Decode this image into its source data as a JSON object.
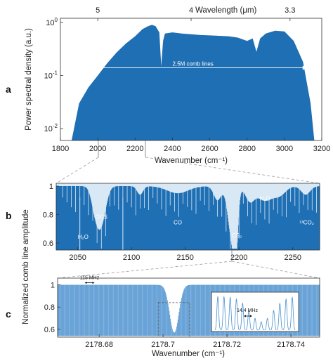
{
  "colors": {
    "spectrum": "#1f6fb4",
    "spectrum_light": "#d9e8f5",
    "comb_line": "#4a90cf",
    "axis": "#333333",
    "annotation": "#ffffff",
    "dashed": "#999999"
  },
  "panel_labels": [
    "a",
    "b",
    "c"
  ],
  "chart_data": [
    {
      "type": "area",
      "panel": "a",
      "xlabel": "Wavenumber (cm⁻¹)",
      "ylabel": "Power spectral density (a.u.)",
      "top_axis_label": "Wavelength (μm)",
      "top_ticks": [
        {
          "label": "5",
          "wavenumber": 2000
        },
        {
          "label": "4",
          "wavenumber": 2500
        },
        {
          "label": "3.3",
          "wavenumber": 3030
        }
      ],
      "xlim": [
        1800,
        3200
      ],
      "xticks": [
        1800,
        2000,
        2200,
        2400,
        2600,
        2800,
        3000,
        3200
      ],
      "ylim": [
        0.006,
        1.2
      ],
      "yscale": "log",
      "yticks": [
        {
          "value": 0.01,
          "base": "10",
          "exp": "-2"
        },
        {
          "value": 0.1,
          "base": "10",
          "exp": "-1"
        },
        {
          "value": 1,
          "base": "10",
          "exp": "0"
        }
      ],
      "x": [
        1800,
        1860,
        1900,
        1950,
        2000,
        2050,
        2100,
        2150,
        2200,
        2240,
        2270,
        2290,
        2310,
        2330,
        2340,
        2350,
        2360,
        2400,
        2450,
        2500,
        2550,
        2600,
        2650,
        2700,
        2750,
        2800,
        2830,
        2850,
        2870,
        2900,
        2950,
        3000,
        3050,
        3100,
        3140,
        3160,
        3200
      ],
      "y": [
        0.006,
        0.006,
        0.03,
        0.06,
        0.1,
        0.17,
        0.27,
        0.4,
        0.55,
        0.75,
        0.85,
        0.9,
        0.85,
        0.65,
        0.15,
        0.45,
        0.62,
        0.65,
        0.62,
        0.6,
        0.58,
        0.57,
        0.56,
        0.55,
        0.52,
        0.45,
        0.5,
        0.28,
        0.5,
        0.62,
        0.7,
        0.68,
        0.45,
        0.18,
        0.03,
        0.006,
        0.006
      ],
      "annotation": {
        "text": "2.5M comb lines",
        "x_start": 1900,
        "x_end": 3120,
        "y": 0.14
      }
    },
    {
      "type": "line",
      "panel": "b",
      "ylabel": "Normalized comb line amplitude",
      "xlim": [
        2030,
        2275
      ],
      "xticks": [
        2050,
        2100,
        2150,
        2200,
        2250
      ],
      "ylim": [
        0.55,
        1.02
      ],
      "yticks": [
        0.6,
        0.8,
        1
      ],
      "labels": [
        {
          "text": "H₂O",
          "x": 2055,
          "y": 0.63
        },
        {
          "text": "OCS",
          "x": 2072,
          "y": 0.77
        },
        {
          "text": "CO",
          "x": 2143,
          "y": 0.73
        },
        {
          "text": "N₂O",
          "x": 2224,
          "y": 0.9
        },
        {
          "text": "CS₂",
          "x": 2198,
          "y": 0.64
        },
        {
          "text": "¹³CO₂",
          "x": 2263,
          "y": 0.73
        }
      ]
    },
    {
      "type": "line",
      "panel": "c",
      "xlabel": "Wavenumber (cm⁻¹)",
      "xlim": [
        2178.667,
        2178.749
      ],
      "xticks": [
        {
          "value": 2178.68,
          "label": "2178.68"
        },
        {
          "value": 2178.7,
          "label": "2178.7"
        },
        {
          "value": 2178.72,
          "label": "2178.72"
        },
        {
          "value": 2178.74,
          "label": "2178.74"
        }
      ],
      "ylim": [
        0.53,
        1.06
      ],
      "yticks": [
        0.6,
        0.8,
        1
      ],
      "annotations": [
        {
          "text": "115 MHz",
          "x": 2178.677,
          "y": 1.05
        },
        {
          "text": "14.4 MHz"
        }
      ]
    }
  ]
}
